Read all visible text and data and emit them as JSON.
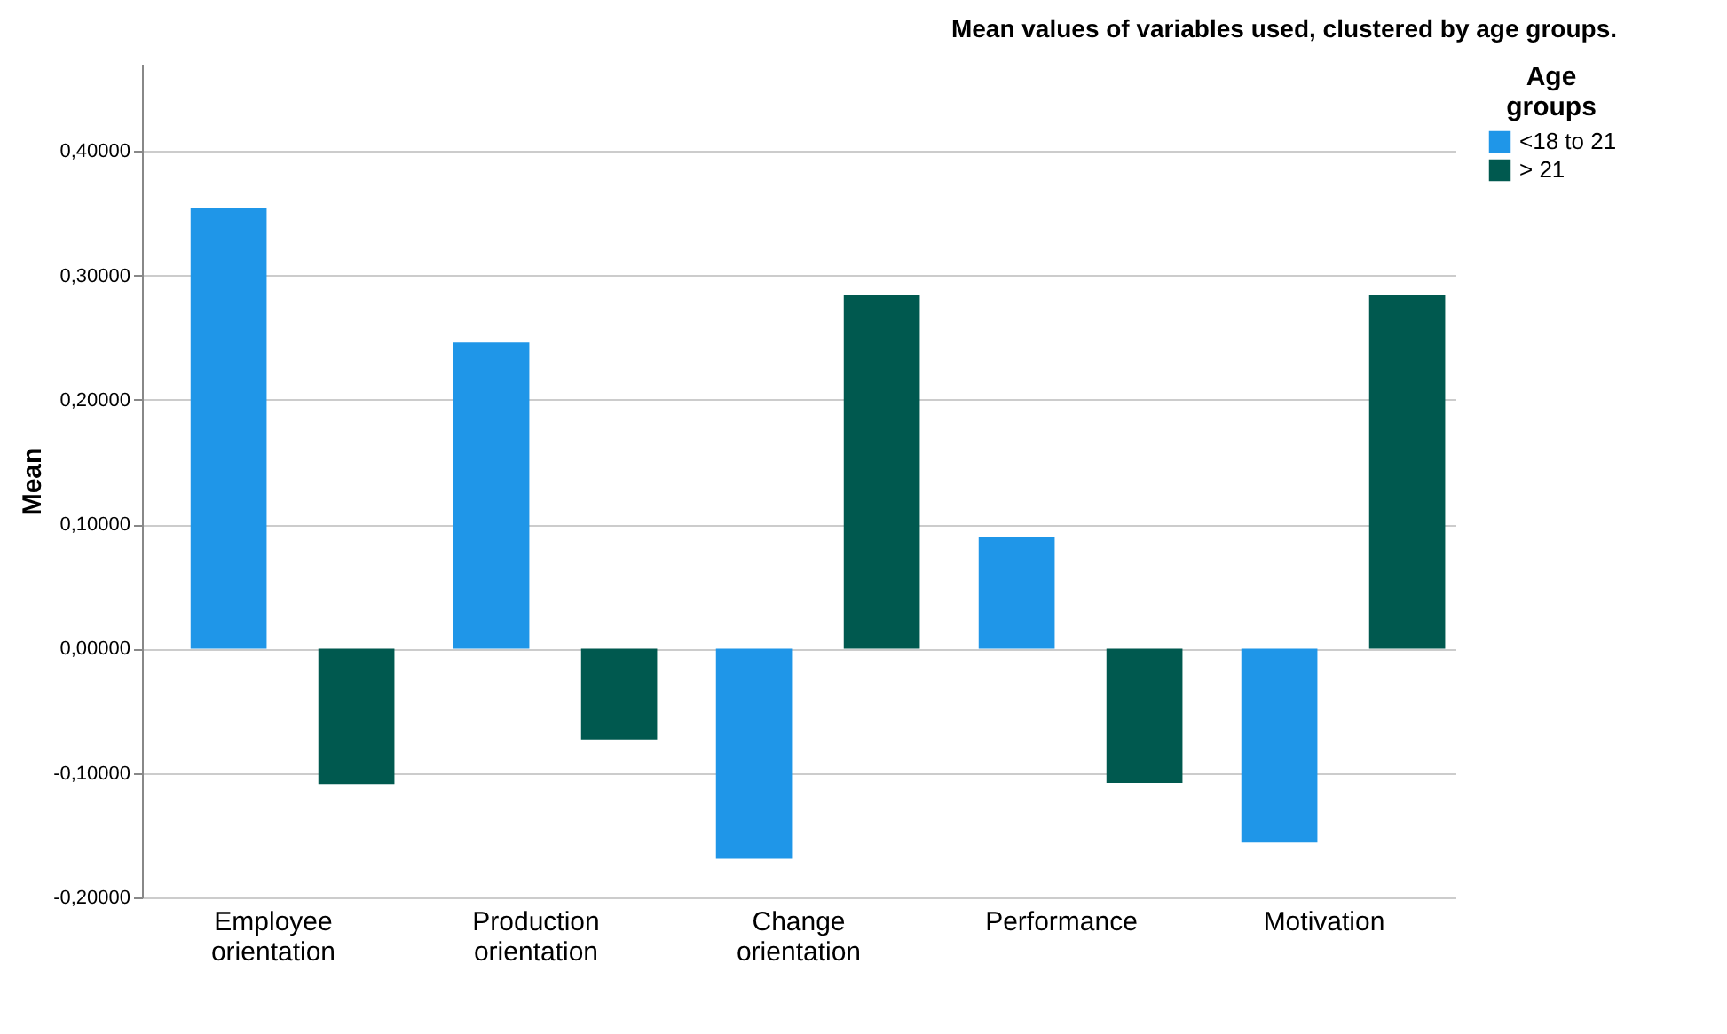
{
  "chart_data": {
    "type": "bar",
    "title": "Mean values of variables used, clustered by age groups.",
    "ylabel": "Mean",
    "legend_title": "Age groups",
    "legend": "top right",
    "grid": "y",
    "categories": [
      "Employee orientation",
      "Production orientation",
      "Change orientation",
      "Performance",
      "Motivation"
    ],
    "series": [
      {
        "name": "<18 to 21",
        "color": "#1f96e8",
        "values": [
          0.354,
          0.246,
          -0.169,
          0.09,
          -0.156
        ]
      },
      {
        "name": "> 21",
        "color": "#00594f",
        "values": [
          -0.109,
          -0.073,
          0.284,
          -0.108,
          0.284
        ]
      }
    ],
    "ylim": [
      -0.2,
      0.47
    ],
    "yticks": [
      {
        "value": -0.2,
        "label": "-0,20000"
      },
      {
        "value": -0.1,
        "label": "-0,10000"
      },
      {
        "value": 0,
        "label": "0,00000"
      },
      {
        "value": 0.1,
        "label": "0,10000"
      },
      {
        "value": 0.2,
        "label": "0,20000"
      },
      {
        "value": 0.3,
        "label": "0,30000"
      },
      {
        "value": 0.4,
        "label": "0,40000"
      }
    ]
  }
}
